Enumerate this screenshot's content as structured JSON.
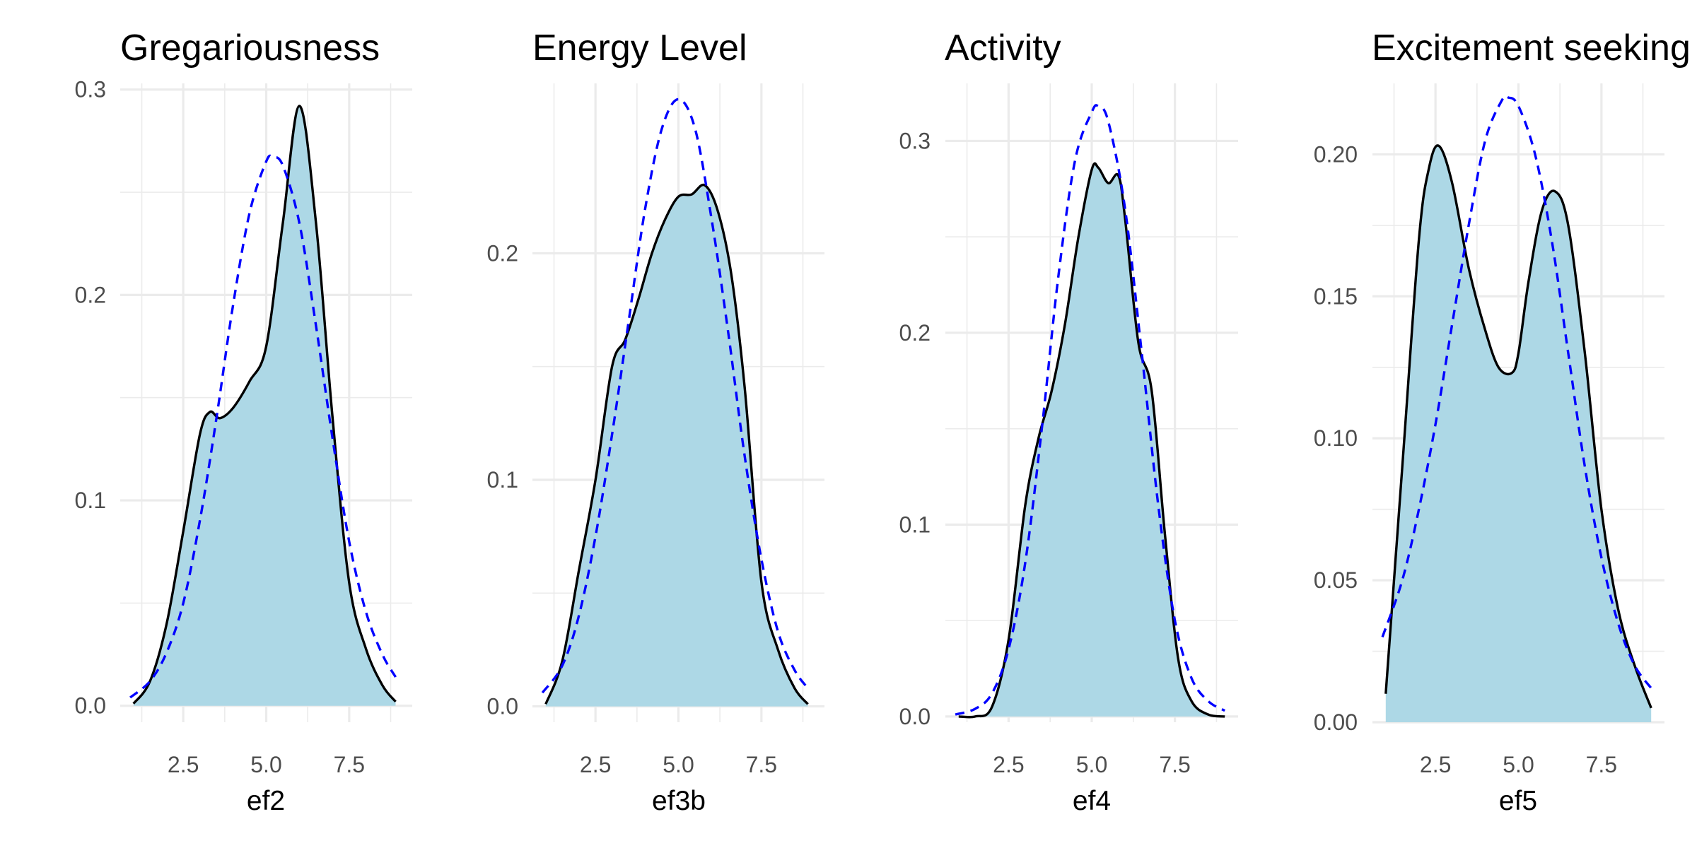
{
  "colors": {
    "fill": "#add8e6",
    "density_line": "#000000",
    "normal_line": "#0000ff",
    "grid": "#ebebeb",
    "tick_text": "#4d4d4d",
    "background": "#ffffff"
  },
  "chart_data": [
    {
      "type": "area",
      "title": "Gregariousness",
      "xlabel": "ef2",
      "ylabel": "",
      "xlim": [
        0.6,
        9.4
      ],
      "ylim": [
        -0.008,
        0.303
      ],
      "x_ticks": [
        2.5,
        5.0,
        7.5
      ],
      "x_tick_labels": [
        "2.5",
        "5.0",
        "7.5"
      ],
      "y_ticks": [
        0.0,
        0.1,
        0.2,
        0.3
      ],
      "y_tick_labels": [
        "0.0",
        "0.1",
        "0.2",
        "0.3"
      ],
      "grid": true,
      "series": [
        {
          "kind": "kernel-density",
          "style": "solid-filled",
          "x": [
            1.0,
            1.5,
            2.0,
            2.5,
            3.0,
            3.3,
            3.6,
            4.0,
            4.5,
            5.0,
            5.5,
            6.0,
            6.5,
            7.0,
            7.5,
            8.0,
            8.5,
            8.9
          ],
          "y": [
            0.001,
            0.012,
            0.04,
            0.085,
            0.132,
            0.143,
            0.14,
            0.145,
            0.158,
            0.175,
            0.235,
            0.292,
            0.235,
            0.14,
            0.06,
            0.028,
            0.01,
            0.002
          ]
        },
        {
          "kind": "normal-reference",
          "style": "dashed",
          "x": [
            0.9,
            1.5,
            2.0,
            2.5,
            3.0,
            3.5,
            4.0,
            4.5,
            5.0,
            5.2,
            5.5,
            6.0,
            6.5,
            7.0,
            7.5,
            8.0,
            8.5,
            8.9
          ],
          "y": [
            0.004,
            0.012,
            0.026,
            0.05,
            0.09,
            0.14,
            0.195,
            0.24,
            0.265,
            0.267,
            0.263,
            0.235,
            0.185,
            0.13,
            0.08,
            0.046,
            0.025,
            0.014
          ]
        }
      ]
    },
    {
      "type": "area",
      "title": "Energy Level",
      "xlabel": "ef3b",
      "ylabel": "",
      "xlim": [
        0.6,
        9.4
      ],
      "ylim": [
        -0.007,
        0.275
      ],
      "x_ticks": [
        2.5,
        5.0,
        7.5
      ],
      "x_tick_labels": [
        "2.5",
        "5.0",
        "7.5"
      ],
      "y_ticks": [
        0.0,
        0.1,
        0.2
      ],
      "y_tick_labels": [
        "0.0",
        "0.1",
        "0.2"
      ],
      "grid": true,
      "series": [
        {
          "kind": "kernel-density",
          "style": "solid-filled",
          "x": [
            1.0,
            1.5,
            2.0,
            2.5,
            3.0,
            3.4,
            3.8,
            4.2,
            4.6,
            5.0,
            5.4,
            5.8,
            6.2,
            6.6,
            7.0,
            7.5,
            8.0,
            8.5,
            8.9
          ],
          "y": [
            0.001,
            0.02,
            0.06,
            0.1,
            0.15,
            0.162,
            0.18,
            0.2,
            0.215,
            0.225,
            0.226,
            0.23,
            0.218,
            0.19,
            0.14,
            0.055,
            0.025,
            0.008,
            0.001
          ]
        },
        {
          "kind": "normal-reference",
          "style": "dashed",
          "x": [
            0.9,
            1.5,
            2.0,
            2.5,
            3.0,
            3.5,
            4.0,
            4.5,
            5.0,
            5.5,
            6.0,
            6.5,
            7.0,
            7.5,
            8.0,
            8.5,
            8.9
          ],
          "y": [
            0.006,
            0.018,
            0.04,
            0.075,
            0.12,
            0.17,
            0.22,
            0.255,
            0.268,
            0.255,
            0.215,
            0.165,
            0.11,
            0.065,
            0.033,
            0.016,
            0.008
          ]
        }
      ]
    },
    {
      "type": "area",
      "title": "Activity",
      "xlabel": "ef4",
      "ylabel": "",
      "xlim": [
        0.6,
        9.4
      ],
      "ylim": [
        -0.003,
        0.33
      ],
      "x_ticks": [
        2.5,
        5.0,
        7.5
      ],
      "x_tick_labels": [
        "2.5",
        "5.0",
        "7.5"
      ],
      "y_ticks": [
        0.0,
        0.1,
        0.2,
        0.3
      ],
      "y_tick_labels": [
        "0.0",
        "0.1",
        "0.2",
        "0.3"
      ],
      "grid": true,
      "series": [
        {
          "kind": "kernel-density",
          "style": "solid-filled",
          "x": [
            1.0,
            1.5,
            2.0,
            2.5,
            3.0,
            3.4,
            3.8,
            4.2,
            4.6,
            5.0,
            5.2,
            5.5,
            5.8,
            6.0,
            6.4,
            6.8,
            7.2,
            7.6,
            8.0,
            8.5,
            9.0
          ],
          "y": [
            0.0,
            0.0,
            0.005,
            0.04,
            0.11,
            0.145,
            0.17,
            0.205,
            0.25,
            0.285,
            0.286,
            0.278,
            0.282,
            0.26,
            0.195,
            0.17,
            0.095,
            0.03,
            0.008,
            0.001,
            0.0
          ]
        },
        {
          "kind": "normal-reference",
          "style": "dashed",
          "x": [
            0.9,
            1.5,
            2.0,
            2.5,
            3.0,
            3.5,
            4.0,
            4.5,
            5.0,
            5.2,
            5.5,
            6.0,
            6.5,
            7.0,
            7.5,
            8.0,
            8.5,
            9.0
          ],
          "y": [
            0.001,
            0.004,
            0.012,
            0.035,
            0.08,
            0.15,
            0.23,
            0.29,
            0.315,
            0.318,
            0.31,
            0.265,
            0.19,
            0.11,
            0.05,
            0.02,
            0.008,
            0.003
          ]
        }
      ]
    },
    {
      "type": "area",
      "title": "Excitement seeking",
      "xlabel": "ef5",
      "ylabel": "",
      "xlim": [
        0.6,
        9.4
      ],
      "ylim": [
        0.0,
        0.225
      ],
      "x_ticks": [
        2.5,
        5.0,
        7.5
      ],
      "x_tick_labels": [
        "2.5",
        "5.0",
        "7.5"
      ],
      "y_ticks": [
        0.0,
        0.05,
        0.1,
        0.15,
        0.2
      ],
      "y_tick_labels": [
        "0.00",
        "0.05",
        "0.10",
        "0.15",
        "0.20"
      ],
      "grid": true,
      "series": [
        {
          "kind": "kernel-density",
          "style": "solid-filled",
          "x": [
            1.0,
            1.5,
            2.0,
            2.3,
            2.6,
            3.0,
            3.5,
            4.0,
            4.4,
            4.8,
            5.0,
            5.3,
            5.7,
            6.1,
            6.5,
            7.0,
            7.5,
            8.0,
            8.5,
            9.0
          ],
          "y": [
            0.01,
            0.09,
            0.17,
            0.195,
            0.203,
            0.19,
            0.16,
            0.138,
            0.125,
            0.123,
            0.13,
            0.155,
            0.18,
            0.187,
            0.175,
            0.13,
            0.075,
            0.04,
            0.02,
            0.005
          ]
        },
        {
          "kind": "normal-reference",
          "style": "dashed",
          "x": [
            0.9,
            1.5,
            2.0,
            2.5,
            3.0,
            3.5,
            4.0,
            4.5,
            4.7,
            5.0,
            5.5,
            6.0,
            6.5,
            7.0,
            7.5,
            8.0,
            8.5,
            9.0
          ],
          "y": [
            0.03,
            0.05,
            0.075,
            0.105,
            0.14,
            0.175,
            0.205,
            0.219,
            0.22,
            0.217,
            0.2,
            0.17,
            0.13,
            0.09,
            0.058,
            0.035,
            0.02,
            0.012
          ]
        }
      ]
    }
  ]
}
